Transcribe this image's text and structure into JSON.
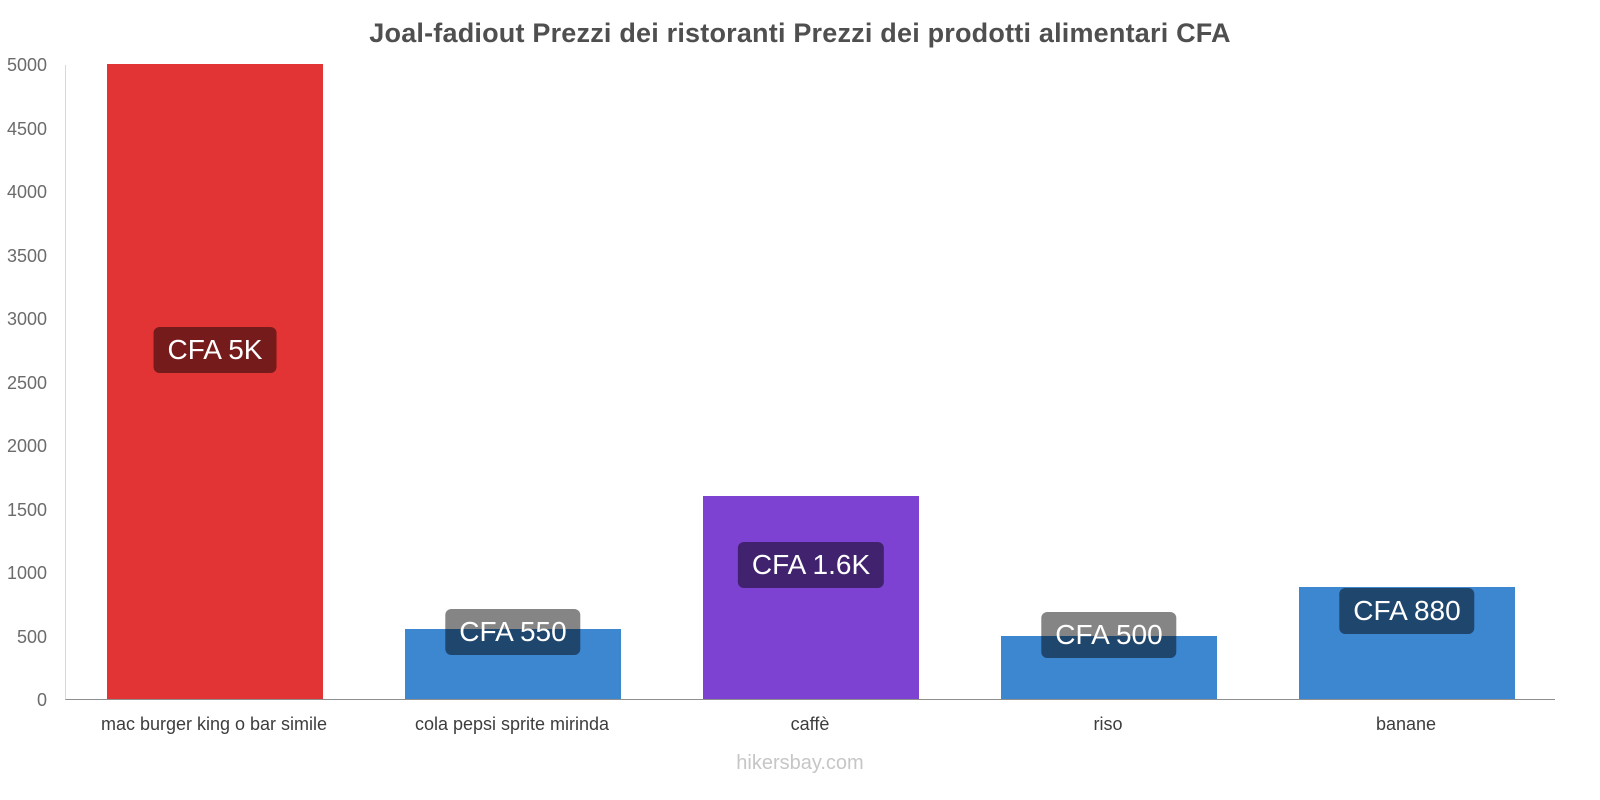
{
  "chart_data": {
    "type": "bar",
    "title": "Joal-fadiout Prezzi dei ristoranti Prezzi dei prodotti alimentari CFA",
    "categories": [
      "mac burger king o bar simile",
      "cola pepsi sprite mirinda",
      "caffè",
      "riso",
      "banane"
    ],
    "values": [
      5000,
      550,
      1600,
      500,
      880
    ],
    "bar_labels": [
      "CFA 5K",
      "CFA 550",
      "CFA 1.6K",
      "CFA 500",
      "CFA 880"
    ],
    "bar_colors": [
      "#e23434",
      "#3d87d1",
      "#7e42d3",
      "#3d87d1",
      "#3d87d1"
    ],
    "badge_color": "rgba(0,0,0,0.48)",
    "xlabel": "",
    "ylabel": "",
    "ylim": [
      0,
      5000
    ],
    "y_tick_step": 500,
    "grid": false,
    "legend_position": "none"
  },
  "footer": {
    "watermark": "hikersbay.com"
  }
}
